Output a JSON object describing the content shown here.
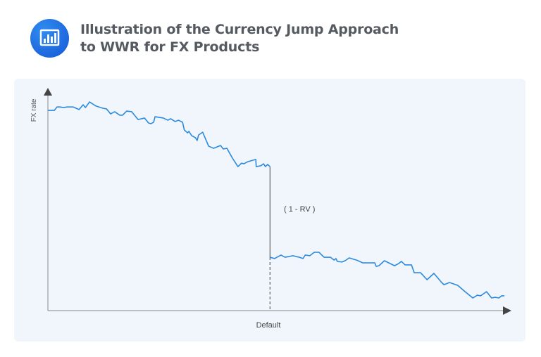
{
  "header": {
    "icon": "bar-chart-icon",
    "title_line1": "Illustration of the Currency Jump Approach",
    "title_line2": "to WWR for FX Products"
  },
  "chart_data": {
    "type": "line",
    "title": "Illustration of the Currency Jump Approach to WWR for FX Products",
    "xlabel": "Default",
    "ylabel": "FX rate",
    "xlim": [
      0,
      100
    ],
    "ylim": [
      0,
      100
    ],
    "grid": false,
    "line_color": "#2b8ae0",
    "jump_x": 48.5,
    "annotation": "( 1 - RV )",
    "series": [
      {
        "segment": "pre-default",
        "points": [
          [
            0,
            91.9
          ],
          [
            1.4,
            91.9
          ],
          [
            2,
            93.5
          ],
          [
            2.6,
            93.5
          ],
          [
            3.4,
            93.2
          ],
          [
            4.2,
            93.5
          ],
          [
            5.5,
            93.5
          ],
          [
            6.8,
            92.3
          ],
          [
            7.7,
            94.5
          ],
          [
            8.2,
            93.2
          ],
          [
            9.1,
            95.8
          ],
          [
            10.5,
            93.9
          ],
          [
            12,
            92.9
          ],
          [
            12.8,
            92.6
          ],
          [
            13.7,
            90.3
          ],
          [
            14.6,
            91.3
          ],
          [
            15.7,
            89.7
          ],
          [
            16.3,
            89.7
          ],
          [
            17.2,
            91.6
          ],
          [
            18.3,
            91.3
          ],
          [
            19.7,
            87.7
          ],
          [
            21.1,
            88.4
          ],
          [
            22,
            86.1
          ],
          [
            22.5,
            85.8
          ],
          [
            23.1,
            86.5
          ],
          [
            23.4,
            89
          ],
          [
            25.2,
            88.4
          ],
          [
            26.2,
            87.4
          ],
          [
            26.8,
            88.1
          ],
          [
            27.8,
            86.8
          ],
          [
            28.5,
            87.4
          ],
          [
            29.4,
            86.5
          ],
          [
            29.8,
            82.9
          ],
          [
            30.5,
            81.6
          ],
          [
            30.8,
            82.3
          ],
          [
            31.4,
            80.3
          ],
          [
            32.2,
            79.4
          ],
          [
            32.6,
            78.1
          ],
          [
            32.9,
            80.6
          ],
          [
            33.8,
            81.9
          ],
          [
            35.1,
            75.5
          ],
          [
            36.2,
            74.5
          ],
          [
            37.7,
            75.8
          ],
          [
            38.3,
            74.2
          ],
          [
            39.1,
            74.5
          ],
          [
            40.3,
            70
          ],
          [
            41.5,
            66.1
          ],
          [
            42.3,
            67.7
          ],
          [
            42.8,
            67.4
          ],
          [
            43.7,
            68.4
          ],
          [
            45.4,
            69.4
          ],
          [
            45.5,
            66.1
          ],
          [
            46.5,
            66.5
          ],
          [
            47.1,
            67.4
          ],
          [
            47.5,
            66.1
          ],
          [
            48,
            67.1
          ],
          [
            48.5,
            66.1
          ]
        ]
      },
      {
        "segment": "post-default",
        "points": [
          [
            48.5,
            24.5
          ],
          [
            49.5,
            23.9
          ],
          [
            50.9,
            25.5
          ],
          [
            51.8,
            24.5
          ],
          [
            53.5,
            25.2
          ],
          [
            54.9,
            24.5
          ],
          [
            55.7,
            23.9
          ],
          [
            56.2,
            25.5
          ],
          [
            57.2,
            25.2
          ],
          [
            58.2,
            26.8
          ],
          [
            59.2,
            26.8
          ],
          [
            60.3,
            24.5
          ],
          [
            61.7,
            24.5
          ],
          [
            62.5,
            23.2
          ],
          [
            62.9,
            23.9
          ],
          [
            63.2,
            22.6
          ],
          [
            64.2,
            22.3
          ],
          [
            64.9,
            22.9
          ],
          [
            65.8,
            24.2
          ],
          [
            67.4,
            23.2
          ],
          [
            68.8,
            21.9
          ],
          [
            71.4,
            21.9
          ],
          [
            71.7,
            20.3
          ],
          [
            72.3,
            20.6
          ],
          [
            73.5,
            22.9
          ],
          [
            75.7,
            20.6
          ],
          [
            76.6,
            21.6
          ],
          [
            77.2,
            22.6
          ],
          [
            78,
            21
          ],
          [
            79.4,
            21
          ],
          [
            80,
            17.4
          ],
          [
            81.4,
            17.4
          ],
          [
            82.8,
            14.2
          ],
          [
            84.3,
            17.1
          ],
          [
            86,
            12.9
          ],
          [
            86.5,
            11.9
          ],
          [
            87.7,
            12.9
          ],
          [
            89.5,
            11.6
          ],
          [
            91.1,
            8.7
          ],
          [
            92.8,
            5.8
          ],
          [
            93.8,
            7.1
          ],
          [
            94.5,
            6.8
          ],
          [
            95.8,
            8.7
          ],
          [
            96.9,
            5.8
          ],
          [
            97.7,
            6.1
          ],
          [
            98.5,
            5.8
          ],
          [
            99.1,
            6.8
          ],
          [
            99.7,
            6.8
          ]
        ]
      }
    ]
  }
}
